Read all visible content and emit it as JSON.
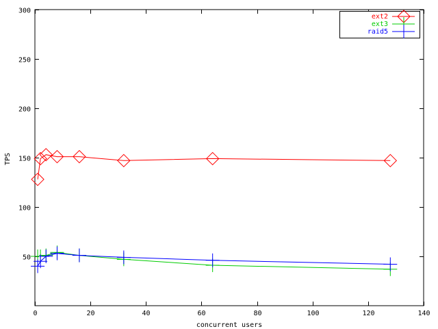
{
  "chart_data": {
    "type": "line",
    "title": "",
    "xlabel": "concurrent users",
    "ylabel": "TPS",
    "xlim": [
      0,
      140
    ],
    "ylim": [
      0,
      300
    ],
    "x_ticks": [
      0,
      20,
      40,
      60,
      80,
      100,
      120,
      140
    ],
    "y_ticks": [
      50,
      100,
      150,
      200,
      250,
      300
    ],
    "grid": false,
    "legend_position": "top-right",
    "series": [
      {
        "name": "ext2",
        "color": "#ff0000",
        "marker": "diamond",
        "x": [
          1,
          2,
          4,
          8,
          16,
          32,
          64,
          128
        ],
        "y": [
          128,
          149,
          153,
          151,
          151,
          147,
          149,
          147
        ]
      },
      {
        "name": "ext3",
        "color": "#00cc00",
        "marker": "plus",
        "x": [
          1,
          2,
          4,
          8,
          16,
          32,
          64,
          128
        ],
        "y": [
          50,
          50,
          51,
          54,
          51,
          47,
          41,
          37
        ]
      },
      {
        "name": "raid5",
        "color": "#0000ff",
        "marker": "plus",
        "x": [
          1,
          2,
          4,
          8,
          16,
          32,
          64,
          128
        ],
        "y": [
          40,
          45,
          50,
          53,
          51,
          49,
          46,
          42
        ]
      }
    ]
  }
}
